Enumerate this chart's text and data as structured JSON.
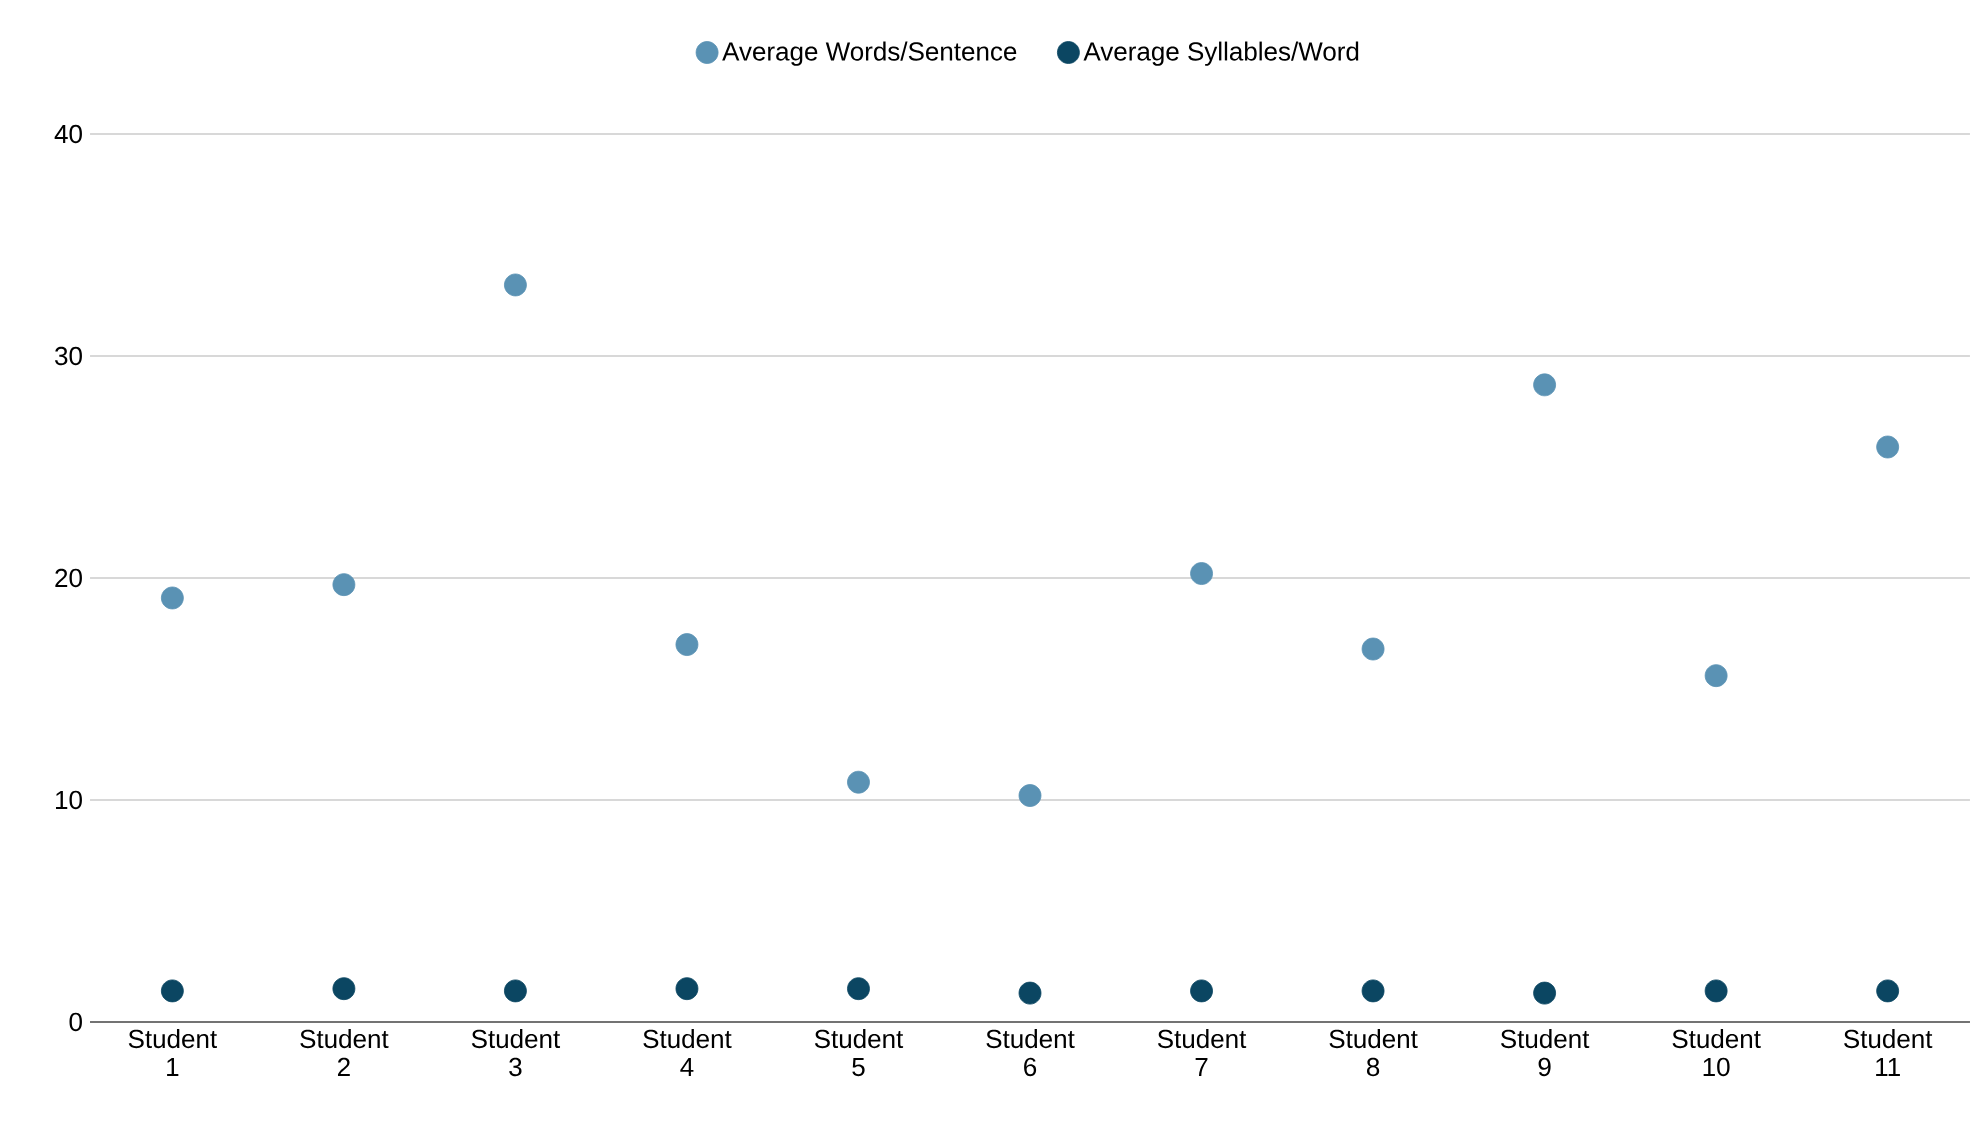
{
  "chart_data": {
    "type": "scatter",
    "categories": [
      "Student 1",
      "Student 2",
      "Student 3",
      "Student 4",
      "Student 5",
      "Student 6",
      "Student 7",
      "Student 8",
      "Student 9",
      "Student 10",
      "Student 11"
    ],
    "series": [
      {
        "name": "Average Words/Sentence",
        "color": "#5a92b4",
        "values": [
          19.1,
          19.7,
          33.2,
          17.0,
          10.8,
          10.2,
          20.2,
          16.8,
          28.7,
          15.6,
          25.9
        ]
      },
      {
        "name": "Average Syllables/Word",
        "color": "#0b4662",
        "values": [
          1.4,
          1.5,
          1.4,
          1.5,
          1.5,
          1.3,
          1.4,
          1.4,
          1.3,
          1.4,
          1.4
        ]
      }
    ],
    "ylim": [
      0,
      40
    ],
    "yticks": [
      0,
      10,
      20,
      30,
      40
    ],
    "grid": "y",
    "legend": "top"
  }
}
